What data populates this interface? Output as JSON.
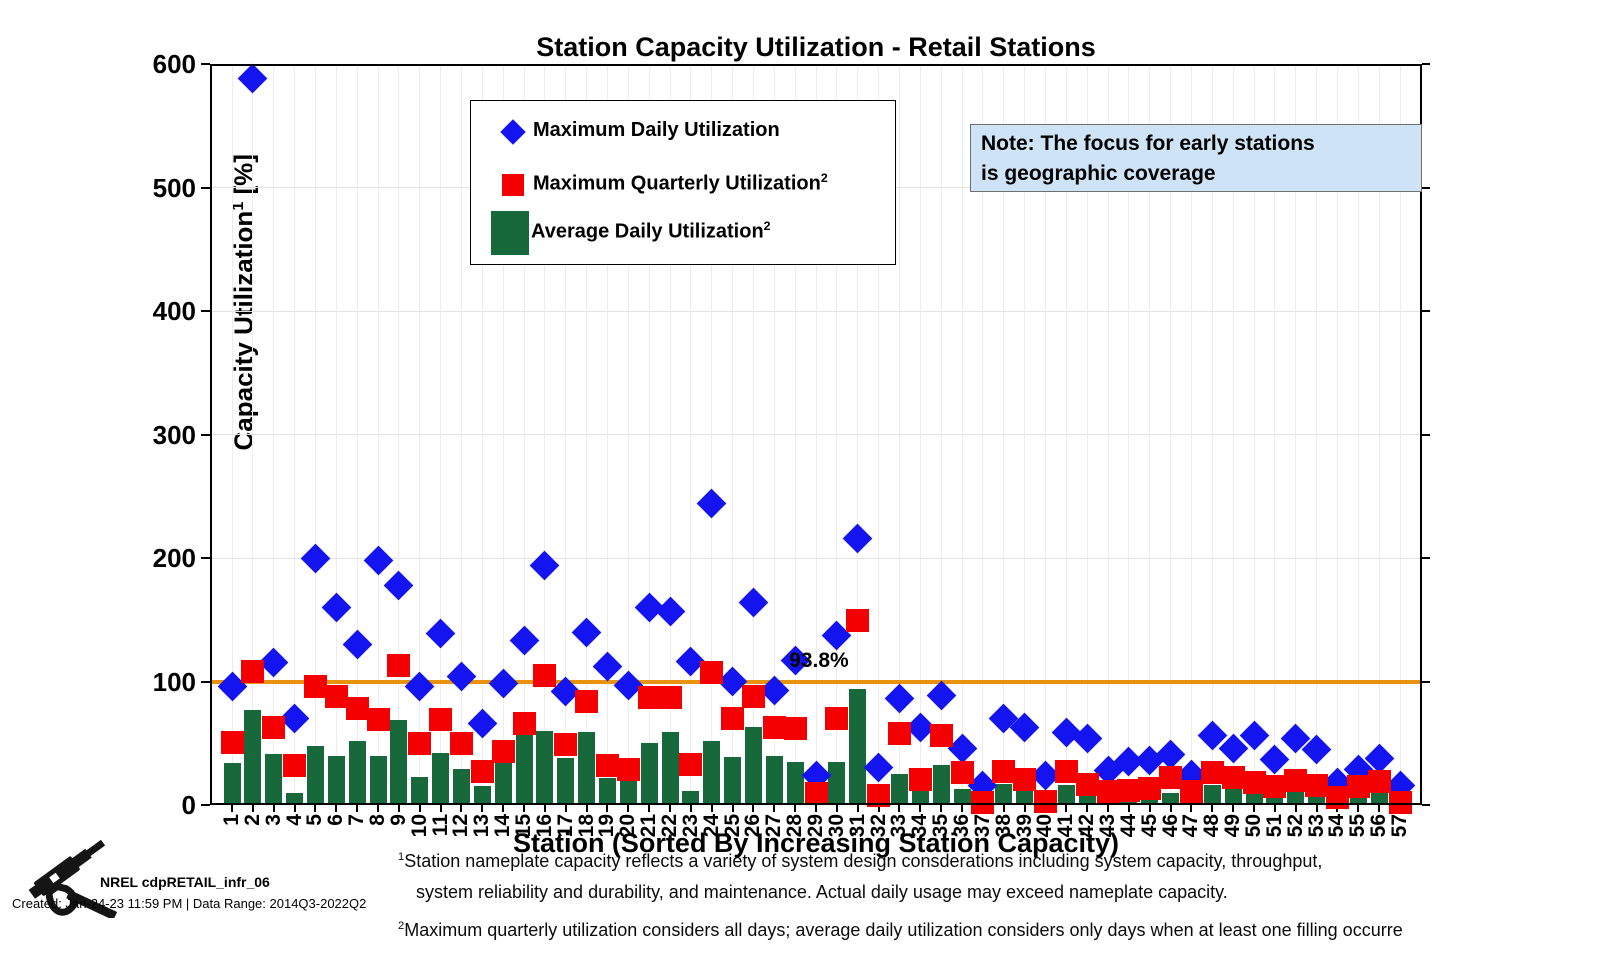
{
  "title": "Station Capacity Utilization - Retail Stations",
  "note": {
    "line1": "Note: The focus for early stations",
    "line2": "is geographic coverage"
  },
  "legend": {
    "items": [
      {
        "label": "Maximum Daily Utilization",
        "sup": "",
        "marker": "diamond",
        "color": "#1414f0"
      },
      {
        "label": "Maximum Quarterly Utilization",
        "sup": "2",
        "marker": "square",
        "color": "#f40000"
      },
      {
        "label": "Average Daily Utilization",
        "sup": "2",
        "marker": "bar",
        "color": "#17693c"
      }
    ]
  },
  "axes": {
    "ylabel_main": "Capacity Utilization",
    "ylabel_sup": "1",
    "ylabel_unit": " [%]",
    "xlabel": "Station (Sorted By Increasing Station Capacity)",
    "yticks": [
      0,
      100,
      200,
      300,
      400,
      500,
      600
    ]
  },
  "reference_line": {
    "value": 100,
    "label": "93.8%",
    "color": "#e8920e"
  },
  "footer": {
    "brand": "NREL cdpRETAIL_infr_06",
    "created": "Created: Jan-24-23 11:59 PM | Data Range: 2014Q3-2022Q2"
  },
  "footnotes": {
    "fn1_sup": "1",
    "fn1_line1": "Station nameplate capacity reflects a variety of system design consderations including system capacity, throughput,",
    "fn1_line2": "system reliability and durability, and maintenance.  Actual daily usage may exceed nameplate capacity.",
    "fn2_sup": "2",
    "fn2_line1": "Maximum quarterly utilization considers all days; average daily utilization considers only days when at least one filling occurre"
  },
  "chart_data": {
    "type": "bar",
    "title": "Station Capacity Utilization - Retail Stations",
    "xlabel": "Station (Sorted By Increasing Station Capacity)",
    "ylabel": "Capacity Utilization [%]",
    "ylim": [
      0,
      600
    ],
    "grid": true,
    "legend_position": "upper-left-inside",
    "annotation": {
      "text": "93.8%",
      "station": 31,
      "refers_to": "Average Daily Utilization of station 31"
    },
    "reference_line_y": 100,
    "stations": [
      1,
      2,
      3,
      4,
      5,
      6,
      7,
      8,
      9,
      10,
      11,
      12,
      13,
      14,
      15,
      16,
      17,
      18,
      19,
      20,
      21,
      22,
      23,
      24,
      25,
      26,
      27,
      28,
      29,
      30,
      31,
      32,
      33,
      34,
      35,
      36,
      37,
      38,
      39,
      40,
      41,
      42,
      43,
      44,
      45,
      46,
      47,
      48,
      49,
      50,
      51,
      52,
      53,
      54,
      55,
      56,
      57
    ],
    "series": [
      {
        "name": "Maximum Daily Utilization",
        "marker": "diamond",
        "color": "#1414f0",
        "values": [
          96,
          588,
          115,
          70,
          200,
          160,
          130,
          198,
          178,
          96,
          139,
          104,
          66,
          98,
          133,
          194,
          92,
          140,
          112,
          97,
          160,
          157,
          116,
          244,
          100,
          164,
          93,
          117,
          24,
          137,
          216,
          30,
          86,
          63,
          89,
          46,
          16,
          70,
          63,
          24,
          59,
          54,
          28,
          35,
          36,
          41,
          25,
          56,
          46,
          56,
          37,
          54,
          45,
          18,
          29,
          38,
          16
        ]
      },
      {
        "name": "Maximum Quarterly Utilization",
        "marker": "square",
        "color": "#f40000",
        "values": [
          51,
          108,
          63,
          32,
          96,
          88,
          78,
          69,
          113,
          50,
          69,
          50,
          27,
          43,
          66,
          105,
          49,
          84,
          32,
          29,
          87,
          87,
          33,
          107,
          70,
          88,
          63,
          62,
          9,
          70,
          149,
          8,
          58,
          21,
          56,
          26,
          2,
          27,
          21,
          3,
          27,
          17,
          11,
          12,
          13,
          22,
          11,
          26,
          22,
          18,
          15,
          20,
          16,
          6,
          15,
          19,
          2
        ]
      },
      {
        "name": "Average Daily Utilization",
        "marker": "bar",
        "color": "#17693c",
        "values": [
          34,
          77,
          41,
          10,
          48,
          40,
          52,
          40,
          69,
          23,
          42,
          29,
          15,
          42,
          60,
          60,
          38,
          59,
          22,
          24,
          50,
          59,
          11,
          52,
          39,
          63,
          40,
          35,
          23,
          35,
          93.8,
          9,
          25,
          13,
          32,
          13,
          2,
          17,
          15,
          6,
          16,
          8,
          5,
          6,
          5,
          10,
          6,
          16,
          16,
          10,
          6,
          11,
          8,
          4,
          9,
          13,
          6
        ]
      }
    ]
  }
}
